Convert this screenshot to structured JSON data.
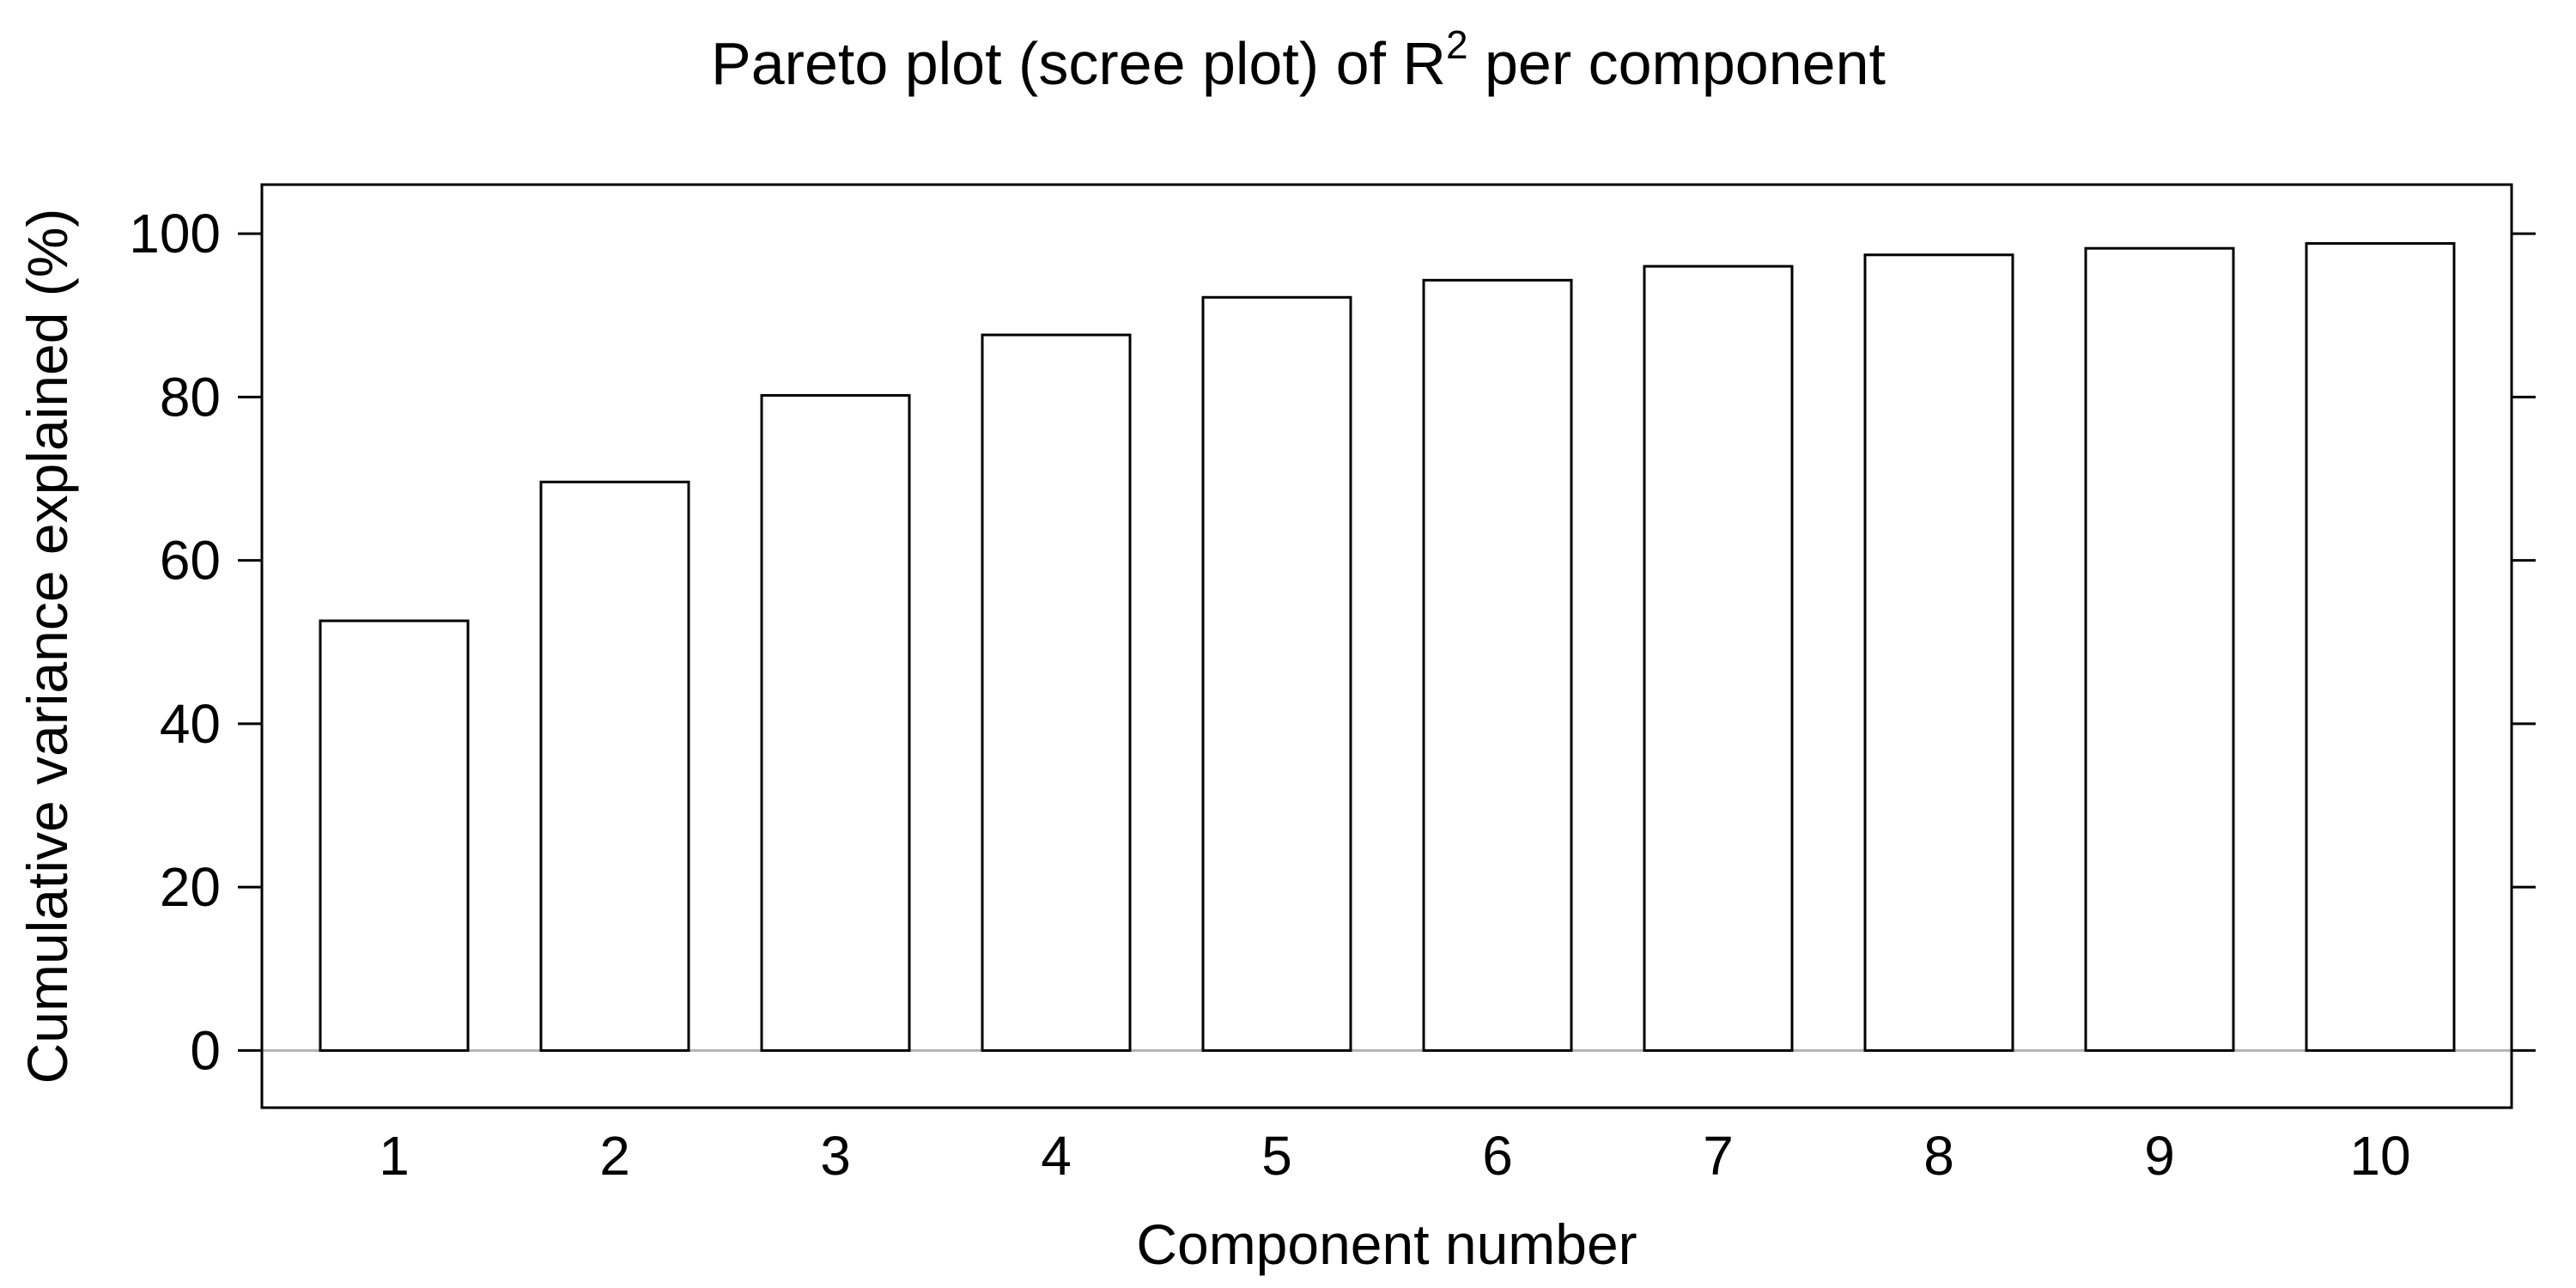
{
  "chart_data": {
    "type": "bar",
    "title": {
      "prefix": "Pareto plot (scree plot) of R",
      "superscript": "2",
      "suffix": " per component"
    },
    "xlabel": "Component number",
    "ylabel": "Cumulative variance explained (%)",
    "categories": [
      "1",
      "2",
      "3",
      "4",
      "5",
      "6",
      "7",
      "8",
      "9",
      "10"
    ],
    "values": [
      52.6,
      69.6,
      80.2,
      87.6,
      92.2,
      94.3,
      96.0,
      97.4,
      98.2,
      98.8
    ],
    "yticks": [
      "0",
      "20",
      "40",
      "60",
      "80",
      "100"
    ],
    "ylim": [
      -7,
      106
    ],
    "grid": false,
    "legend": "none",
    "colors": {
      "bar_fill": "#ffffff",
      "bar_stroke": "#000000",
      "zero_line": "#b3b3b3"
    }
  }
}
